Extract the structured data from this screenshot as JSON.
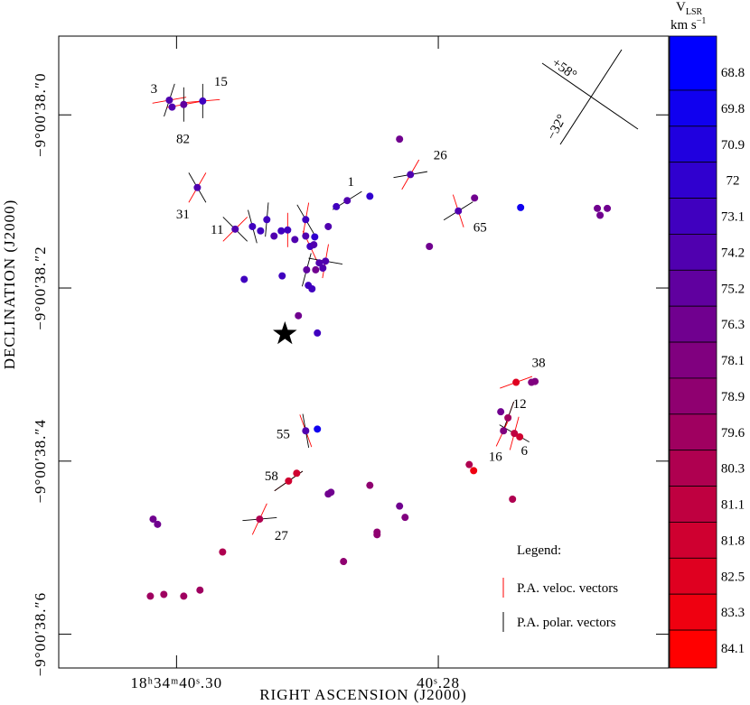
{
  "chart_data": {
    "type": "scatter",
    "xlabel": "RIGHT ASCENSION (J2000)",
    "ylabel": "DECLINATION (J2000)",
    "xlim": [
      40.309,
      40.2624
    ],
    "ylim": [
      38.639,
      37.909
    ],
    "xticks": [
      {
        "value": 40.3,
        "label": "18ʰ34ᵐ40ˢ.30"
      },
      {
        "value": 40.28,
        "label": "40ˢ.28"
      }
    ],
    "yticks": [
      {
        "value": 38.0,
        "label": "−9°00′38.″0"
      },
      {
        "value": 38.2,
        "label": "−9°00′38.″2"
      },
      {
        "value": 38.4,
        "label": "−9°00′38.″4"
      },
      {
        "value": 38.6,
        "label": "−9°00′38.″6"
      }
    ],
    "colorbar": {
      "symbol": "V",
      "subscript": "LSR",
      "unit": "km s",
      "unit_exp": "−1",
      "levels": [
        68.8,
        69.8,
        70.9,
        72,
        73.1,
        74.2,
        75.2,
        76.3,
        78.1,
        78.9,
        79.6,
        80.3,
        81.1,
        81.8,
        82.5,
        83.3,
        84.1
      ],
      "colors": [
        "#0000ff",
        "#1000ef",
        "#2000df",
        "#3000cf",
        "#4000bf",
        "#5000af",
        "#60009f",
        "#70008f",
        "#80007f",
        "#8f0070",
        "#9f0060",
        "#af0050",
        "#bf0040",
        "#cf0030",
        "#df0020",
        "#ef0010",
        "#ff0000"
      ]
    },
    "legend": {
      "title": "Legend:",
      "veloc": "P.A. veloc. vectors",
      "veloc_color": "#ff0000",
      "polar": "P.A. polar. vectors",
      "polar_color": "#000000"
    },
    "orientation": [
      "+58°",
      "−32°"
    ],
    "star": {
      "x": 40.29172,
      "y": 38.253
    },
    "points": [
      {
        "x": 40.30055,
        "y": 37.983,
        "v": 74.2,
        "label": "3",
        "pa_polar": 18,
        "pa_veloc": 80
      },
      {
        "x": 40.30034,
        "y": 37.991,
        "v": 74.2,
        "label": "82"
      },
      {
        "x": 40.29945,
        "y": 37.988,
        "v": 75.2,
        "pa_polar": 0,
        "pa_veloc": 80
      },
      {
        "x": 40.298,
        "y": 37.984,
        "v": 73.1,
        "label": "15",
        "pa_polar": 0,
        "pa_veloc": 85
      },
      {
        "x": 40.28296,
        "y": 38.028,
        "v": 77
      },
      {
        "x": 40.28213,
        "y": 38.069,
        "v": 74.2,
        "label": "26",
        "pa_polar": 80,
        "pa_veloc": 30
      },
      {
        "x": 40.29841,
        "y": 38.084,
        "v": 74.2,
        "label": "31",
        "pa_polar": -30,
        "pa_veloc": 30
      },
      {
        "x": 40.28523,
        "y": 38.094,
        "v": 72
      },
      {
        "x": 40.28696,
        "y": 38.099,
        "v": 74.2,
        "label": "1",
        "pa_polar": 58
      },
      {
        "x": 40.28779,
        "y": 38.106,
        "v": 73.1
      },
      {
        "x": 40.27723,
        "y": 38.096,
        "v": 76.3
      },
      {
        "x": 40.27847,
        "y": 38.111,
        "v": 74.2,
        "label": "65",
        "pa_polar": 58,
        "pa_veloc": -18
      },
      {
        "x": 40.27371,
        "y": 38.107,
        "v": 70.2
      },
      {
        "x": 40.26785,
        "y": 38.108,
        "v": 77
      },
      {
        "x": 40.26709,
        "y": 38.108,
        "v": 77
      },
      {
        "x": 40.26764,
        "y": 38.116,
        "v": 77
      },
      {
        "x": 40.29552,
        "y": 38.132,
        "v": 74.2,
        "label": "11",
        "pa_polar": -45,
        "pa_veloc": 45
      },
      {
        "x": 40.2942,
        "y": 38.129,
        "v": 73.1,
        "pa_polar": -15
      },
      {
        "x": 40.29358,
        "y": 38.134,
        "v": 73.1
      },
      {
        "x": 40.2931,
        "y": 38.121,
        "v": 73.1,
        "pa_polar": 5
      },
      {
        "x": 40.29255,
        "y": 38.14,
        "v": 74.2
      },
      {
        "x": 40.292,
        "y": 38.134,
        "v": 73.1
      },
      {
        "x": 40.29151,
        "y": 38.133,
        "v": 73.1,
        "pa_veloc": 0
      },
      {
        "x": 40.29096,
        "y": 38.144,
        "v": 74.2
      },
      {
        "x": 40.29013,
        "y": 38.121,
        "v": 73.1,
        "pa_polar": -30,
        "pa_veloc": 10
      },
      {
        "x": 40.29013,
        "y": 38.14,
        "v": 74.2
      },
      {
        "x": 40.28944,
        "y": 38.141,
        "v": 72
      },
      {
        "x": 40.28841,
        "y": 38.129,
        "v": 74.2
      },
      {
        "x": 40.28979,
        "y": 38.152,
        "v": 73.1,
        "pa_veloc": -25
      },
      {
        "x": 40.28951,
        "y": 38.15,
        "v": 74.2
      },
      {
        "x": 40.2891,
        "y": 38.171,
        "v": 74.2
      },
      {
        "x": 40.28862,
        "y": 38.169,
        "v": 74.2,
        "pa_polar": -80,
        "pa_veloc": 10
      },
      {
        "x": 40.28882,
        "y": 38.177,
        "v": 74.2
      },
      {
        "x": 40.29006,
        "y": 38.179,
        "v": 75.2,
        "pa_polar": 15
      },
      {
        "x": 40.28937,
        "y": 38.179,
        "v": 76.3
      },
      {
        "x": 40.29193,
        "y": 38.186,
        "v": 73.1
      },
      {
        "x": 40.29483,
        "y": 38.19,
        "v": 73.1
      },
      {
        "x": 40.28993,
        "y": 38.197,
        "v": 73.1
      },
      {
        "x": 40.28965,
        "y": 38.201,
        "v": 73.1
      },
      {
        "x": 40.28068,
        "y": 38.152,
        "v": 77
      },
      {
        "x": 40.29069,
        "y": 38.232,
        "v": 77
      },
      {
        "x": 40.28924,
        "y": 38.252,
        "v": 73.1
      },
      {
        "x": 40.27406,
        "y": 38.309,
        "v": 82.5,
        "label": "38",
        "pa_veloc": 70
      },
      {
        "x": 40.27288,
        "y": 38.309,
        "v": 78.1
      },
      {
        "x": 40.27261,
        "y": 38.308,
        "v": 78.1
      },
      {
        "x": 40.27523,
        "y": 38.343,
        "v": 77
      },
      {
        "x": 40.27468,
        "y": 38.35,
        "v": 79.6,
        "label": "12",
        "pa_polar": 20,
        "pa_veloc": 20
      },
      {
        "x": 40.27502,
        "y": 38.365,
        "v": 78.1,
        "label": "16",
        "pa_veloc": 25
      },
      {
        "x": 40.27419,
        "y": 38.368,
        "v": 81.1,
        "label": "6",
        "pa_polar": -60,
        "pa_veloc": 15
      },
      {
        "x": 40.27378,
        "y": 38.372,
        "v": 81.8
      },
      {
        "x": 40.27764,
        "y": 38.404,
        "v": 80.3
      },
      {
        "x": 40.2773,
        "y": 38.411,
        "v": 83.3
      },
      {
        "x": 40.29013,
        "y": 38.365,
        "v": 74.2,
        "label": "55",
        "pa_polar": -10,
        "pa_veloc": -20
      },
      {
        "x": 40.28924,
        "y": 38.363,
        "v": 69.5
      },
      {
        "x": 40.29144,
        "y": 38.423,
        "v": 81.8,
        "label": "58",
        "pa_polar": 55,
        "pa_veloc": 55
      },
      {
        "x": 40.29082,
        "y": 38.414,
        "v": 81.8
      },
      {
        "x": 40.28841,
        "y": 38.438,
        "v": 76.3
      },
      {
        "x": 40.2882,
        "y": 38.436,
        "v": 76.3
      },
      {
        "x": 40.28523,
        "y": 38.428,
        "v": 78.9
      },
      {
        "x": 40.27433,
        "y": 38.444,
        "v": 80.3
      },
      {
        "x": 40.28296,
        "y": 38.452,
        "v": 77
      },
      {
        "x": 40.28254,
        "y": 38.465,
        "v": 78.1
      },
      {
        "x": 40.30179,
        "y": 38.467,
        "v": 77
      },
      {
        "x": 40.30145,
        "y": 38.473,
        "v": 77
      },
      {
        "x": 40.29365,
        "y": 38.467,
        "v": 80.3,
        "label": "27",
        "pa_polar": 85,
        "pa_veloc": 25
      },
      {
        "x": 40.28468,
        "y": 38.482,
        "v": 78.9
      },
      {
        "x": 40.28468,
        "y": 38.485,
        "v": 78.9
      },
      {
        "x": 40.29648,
        "y": 38.505,
        "v": 80.3
      },
      {
        "x": 40.28724,
        "y": 38.516,
        "v": 78.9
      },
      {
        "x": 40.302,
        "y": 38.556,
        "v": 79.6
      },
      {
        "x": 40.30097,
        "y": 38.554,
        "v": 79.6
      },
      {
        "x": 40.29945,
        "y": 38.556,
        "v": 79.6
      },
      {
        "x": 40.29821,
        "y": 38.549,
        "v": 79.6
      }
    ]
  }
}
